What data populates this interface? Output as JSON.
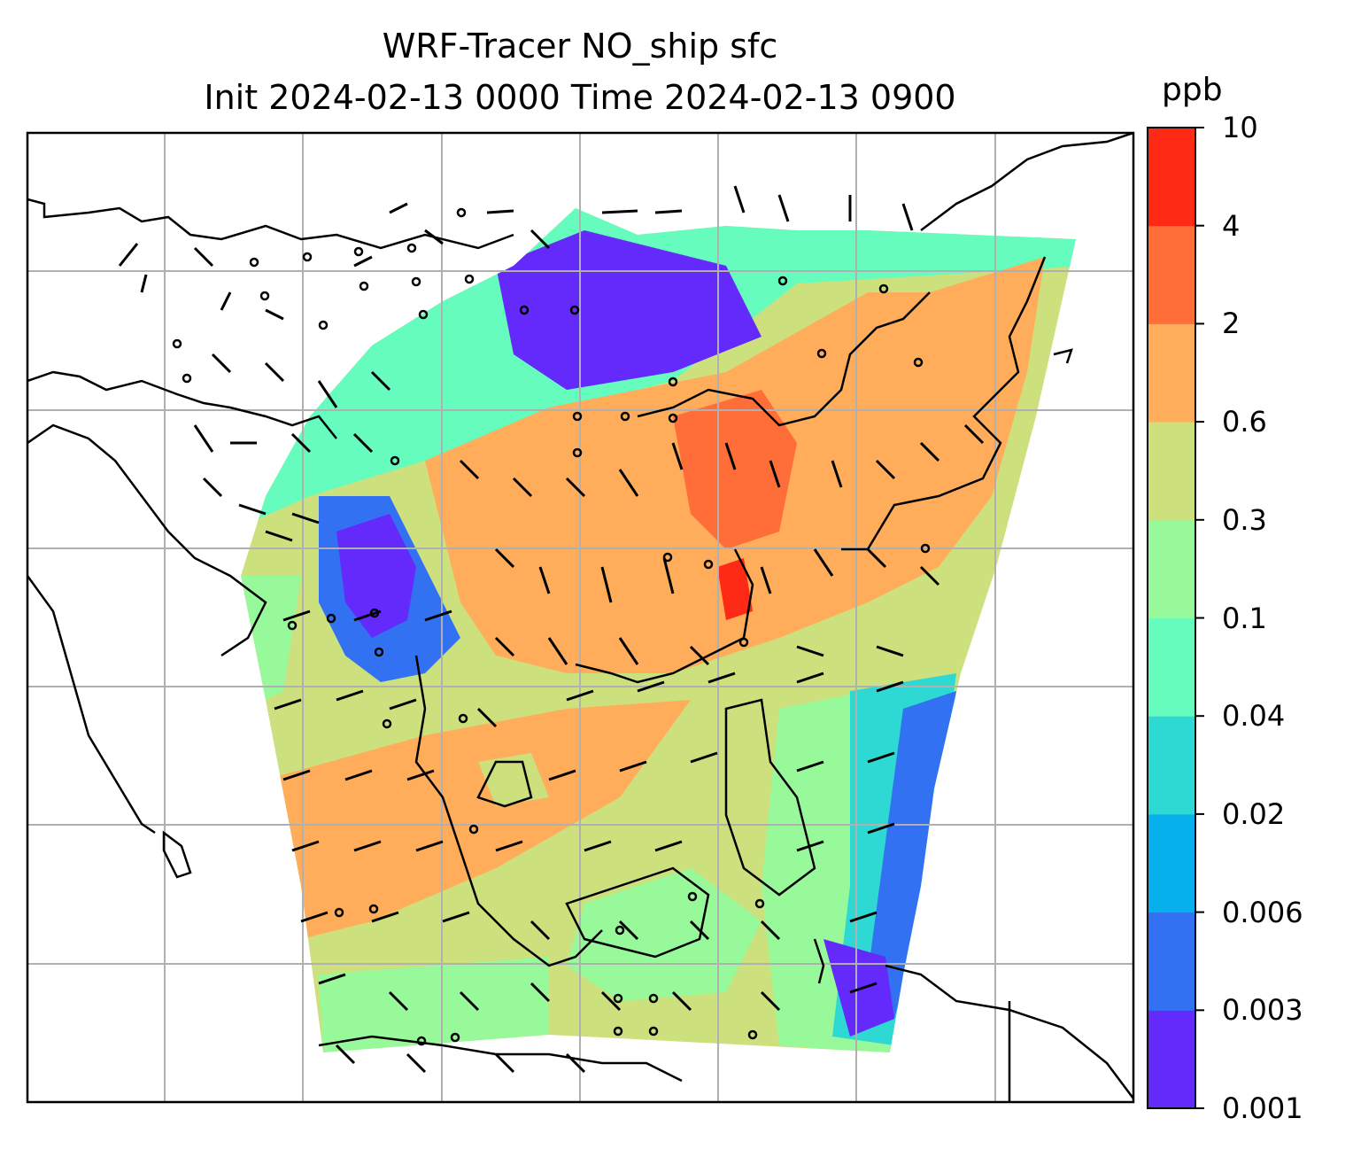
{
  "title": {
    "line1": "WRF-Tracer NO_ship sfc",
    "line2": "Init 2024-02-13 0000 Time 2024-02-13 0900"
  },
  "colorbar": {
    "unit": "ppb",
    "levels": [
      "0.001",
      "0.003",
      "0.006",
      "0.02",
      "0.04",
      "0.1",
      "0.3",
      "0.6",
      "2",
      "4",
      "10"
    ],
    "colors": [
      "#6429fb",
      "#3272f2",
      "#05b0ec",
      "#2ed9d4",
      "#65fcbd",
      "#97f99a",
      "#cde07e",
      "#ffad5b",
      "#ff6e38",
      "#ff2a16"
    ]
  },
  "map": {
    "grid": true,
    "wind_barbs": true,
    "coastlines": true
  }
}
